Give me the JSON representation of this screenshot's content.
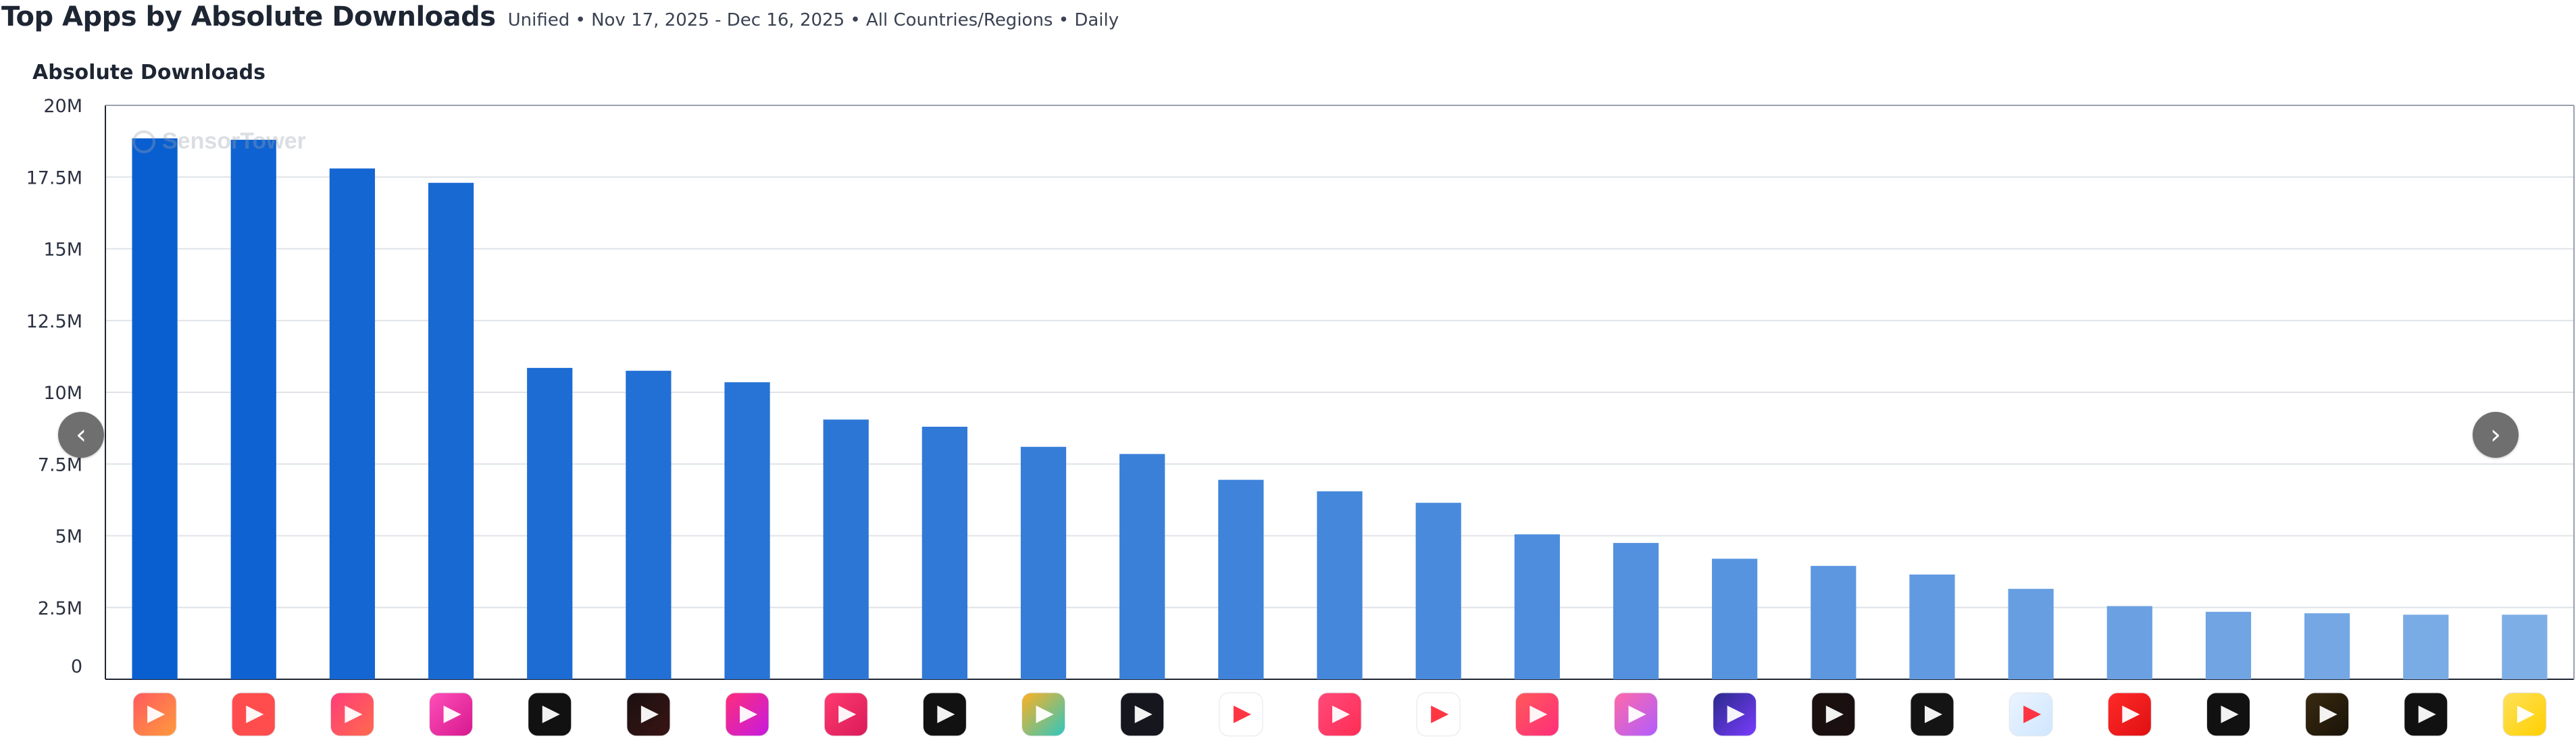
{
  "header": {
    "title": "Top Apps by Absolute Downloads",
    "subtitle": "Unified • Nov 17, 2025 - Dec 16, 2025 • All Countries/Regions • Daily"
  },
  "section_title": "Absolute Downloads",
  "watermark": "SensorTower",
  "nav": {
    "prev_icon": "chevron-left-icon",
    "next_icon": "chevron-right-icon"
  },
  "colors": {
    "bar_start": "#0a5fd0",
    "bar_end": "#7eaee6",
    "grid": "#dfe3e8",
    "axis": "#1e2533",
    "nav_button": "#6f6f6f"
  },
  "chart_data": {
    "type": "bar",
    "title": "",
    "xlabel": "",
    "ylabel": "Absolute Downloads",
    "ylim": [
      0,
      20000000
    ],
    "y_ticks": [
      0,
      2500000,
      5000000,
      7500000,
      10000000,
      12500000,
      15000000,
      17500000,
      20000000
    ],
    "y_tick_labels": [
      "0",
      "2.5M",
      "5M",
      "7.5M",
      "10M",
      "12.5M",
      "15M",
      "17.5M",
      "20M"
    ],
    "grid": true,
    "legend": "none",
    "values": [
      18850000,
      18800000,
      17800000,
      17300000,
      10850000,
      10750000,
      10350000,
      9050000,
      8800000,
      8100000,
      7850000,
      6950000,
      6550000,
      6150000,
      5050000,
      4750000,
      4200000,
      3950000,
      3650000,
      3150000,
      2550000,
      2350000,
      2300000,
      2250000,
      2250000
    ],
    "categories": [
      {
        "icon": "video-player-app-icon",
        "colors": [
          "#ff5a5f",
          "#ff9a3c"
        ]
      },
      {
        "icon": "letter-r-app-icon",
        "colors": [
          "#ff4d4d",
          "#ff4d4d"
        ]
      },
      {
        "icon": "play-button-app-icon",
        "colors": [
          "#ff3c7a",
          "#ff6a4d"
        ]
      },
      {
        "icon": "story-tv-app-icon",
        "colors": [
          "#ff4fb8",
          "#d6188f"
        ]
      },
      {
        "icon": "dual-gold-app-icon",
        "colors": [
          "#111111",
          "#111111"
        ]
      },
      {
        "icon": "letter-k-app-icon",
        "colors": [
          "#1a1010",
          "#3a1414"
        ]
      },
      {
        "icon": "play-square-app-icon",
        "colors": [
          "#ff2d7a",
          "#c51be0"
        ]
      },
      {
        "icon": "q-square-app-icon",
        "colors": [
          "#ff3a6e",
          "#d91b5a"
        ]
      },
      {
        "icon": "letter-s-app-icon",
        "colors": [
          "#111111",
          "#111111"
        ]
      },
      {
        "icon": "colorful-play-app-icon",
        "colors": [
          "#ffb020",
          "#2ec7c0"
        ]
      },
      {
        "icon": "dark-play-app-icon",
        "colors": [
          "#16161e",
          "#16161e"
        ]
      },
      {
        "icon": "red-play-app-icon",
        "colors": [
          "#ffffff",
          "#ffffff"
        ]
      },
      {
        "icon": "pink-play-app-icon",
        "colors": [
          "#ff4a7a",
          "#ff2d55"
        ]
      },
      {
        "icon": "gradient-leaf-app-icon",
        "colors": [
          "#ffffff",
          "#ffffff"
        ]
      },
      {
        "icon": "letter-m-app-icon",
        "colors": [
          "#ff5a5a",
          "#ff2d7a"
        ]
      },
      {
        "icon": "letter-r-gradient-app-icon",
        "colors": [
          "#ff6aa8",
          "#b05cff"
        ]
      },
      {
        "icon": "purple-play-app-icon",
        "colors": [
          "#2a2a8a",
          "#7a3cff"
        ]
      },
      {
        "icon": "flame-app-icon",
        "colors": [
          "#1a1010",
          "#1a1010"
        ]
      },
      {
        "icon": "orange-play-app-icon",
        "colors": [
          "#141414",
          "#141414"
        ]
      },
      {
        "icon": "blue-bookmark-app-icon",
        "colors": [
          "#eaf4ff",
          "#cfe6ff"
        ]
      },
      {
        "icon": "red-tv-app-icon",
        "colors": [
          "#ff2a2a",
          "#e01010"
        ]
      },
      {
        "icon": "letter-m-dark-app-icon",
        "colors": [
          "#111111",
          "#111111"
        ]
      },
      {
        "icon": "orange-diamond-app-icon",
        "colors": [
          "#3a2a10",
          "#1a1208"
        ]
      },
      {
        "icon": "red-circle-play-app-icon",
        "colors": [
          "#111111",
          "#111111"
        ]
      },
      {
        "icon": "letter-f-yellow-app-icon",
        "colors": [
          "#ffe15a",
          "#ffcf00"
        ]
      }
    ]
  }
}
